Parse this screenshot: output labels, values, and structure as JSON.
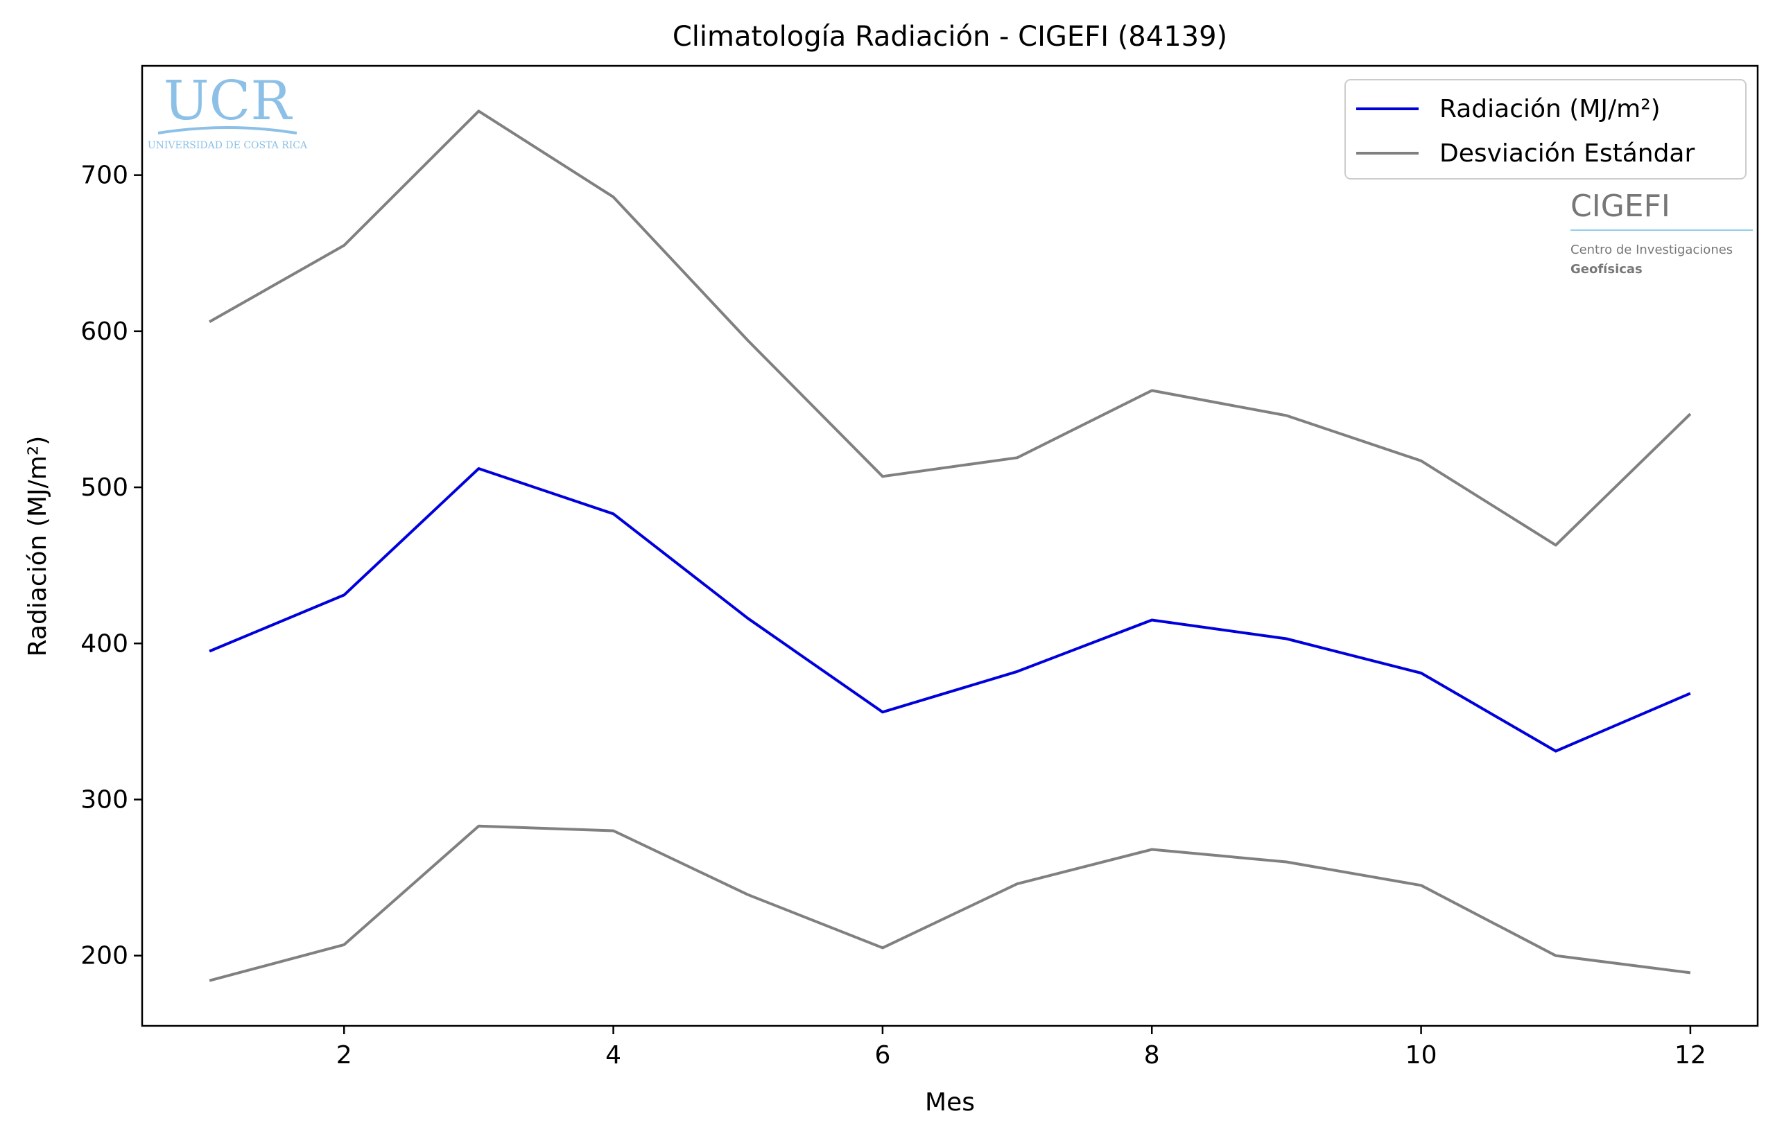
{
  "chart_data": {
    "type": "line",
    "title": "Climatología Radiación - CIGEFI (84139)",
    "xlabel": "Mes",
    "ylabel": "Radiación (MJ/m²)",
    "xlim": [
      0.5,
      12.5
    ],
    "ylim": [
      155,
      770
    ],
    "xticks": [
      2,
      4,
      6,
      8,
      10,
      12
    ],
    "yticks": [
      200,
      300,
      400,
      500,
      600,
      700
    ],
    "grid": false,
    "legend_position": "top-right",
    "x": [
      1,
      2,
      3,
      4,
      5,
      6,
      7,
      8,
      9,
      10,
      11,
      12
    ],
    "series": [
      {
        "name": "Radiación (MJ/m²)",
        "color": "#0000dd",
        "values": [
          395,
          431,
          512,
          483,
          416,
          356,
          382,
          415,
          403,
          381,
          331,
          368
        ]
      },
      {
        "name": "Desviación Estándar",
        "color": "#808080",
        "values": [
          606,
          655,
          741,
          686,
          594,
          507,
          519,
          562,
          546,
          517,
          463,
          547
        ]
      },
      {
        "color": "#808080",
        "values": [
          184,
          207,
          283,
          280,
          239,
          205,
          246,
          268,
          260,
          245,
          200,
          189
        ]
      }
    ]
  },
  "logos": {
    "ucr_main": "UCR",
    "ucr_sub": "UNIVERSIDAD DE COSTA RICA",
    "cigefi_main": "CIGEFI",
    "cigefi_line1": "Centro de Investigaciones",
    "cigefi_line2": "Geofísicas"
  }
}
